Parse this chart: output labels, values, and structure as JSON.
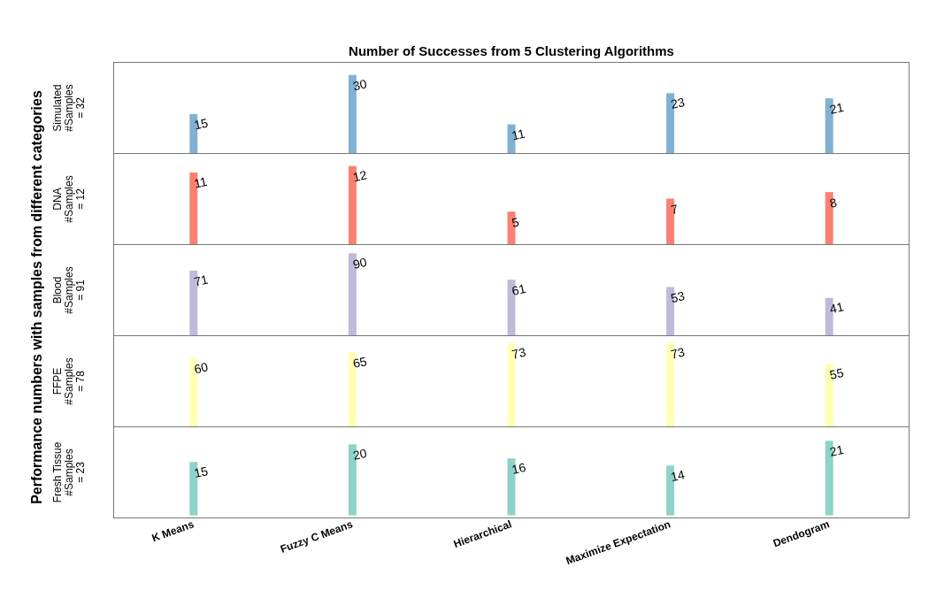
{
  "chart_data": [
    {
      "type": "bar",
      "title": "Number of Successes from 5 Clustering Algorithms",
      "ylabel": "Simulated\n#Samples\n= 32",
      "annotations": [
        "Performance numbers with samples from different categories"
      ],
      "categories": [
        null,
        null,
        null,
        null,
        null
      ],
      "values": [
        15,
        30,
        11,
        23,
        21
      ],
      "color": "#80b1d3",
      "data_labels": true,
      "tick_labels": false
    },
    {
      "type": "bar",
      "ylabel": "DNA\n#Samples\n= 12",
      "categories": [
        null,
        null,
        null,
        null,
        null
      ],
      "values": [
        11,
        12,
        5,
        7,
        8
      ],
      "color": "#fb8072",
      "data_labels": true,
      "tick_labels": false
    },
    {
      "type": "bar",
      "ylabel": "Blood\n#Samples\n= 91",
      "categories": [
        null,
        null,
        null,
        null,
        null
      ],
      "values": [
        71,
        90,
        61,
        53,
        41
      ],
      "color": "#bebada",
      "data_labels": true,
      "tick_labels": false
    },
    {
      "type": "bar",
      "ylabel": "FFPE\n#Samples\n= 78",
      "categories": [
        null,
        null,
        null,
        null,
        null
      ],
      "values": [
        60,
        65,
        73,
        73,
        55
      ],
      "color": "#ffffb3",
      "data_labels": true,
      "tick_labels": false
    },
    {
      "type": "bar",
      "ylabel": "Fresh Tissue\n#Samples\n= 23",
      "categories": [
        "K Means",
        "Fuzzy C Means",
        "Hierarchical",
        "Maximize Expectation",
        "Dendogram"
      ],
      "values": [
        15,
        20,
        16,
        14,
        21
      ],
      "color": "#8dd3c7",
      "data_labels": true,
      "tick_labels": "x"
    }
  ]
}
